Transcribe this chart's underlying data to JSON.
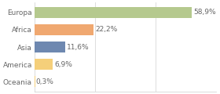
{
  "categories": [
    "Europa",
    "Africa",
    "Asia",
    "America",
    "Oceania"
  ],
  "values": [
    58.9,
    22.2,
    11.6,
    6.9,
    0.3
  ],
  "labels": [
    "58,9%",
    "22,2%",
    "11,6%",
    "6,9%",
    "0,3%"
  ],
  "colors": [
    "#b5c98e",
    "#f0a870",
    "#6e88b0",
    "#f5cf7a",
    "#f5cf7a"
  ],
  "background_color": "#ffffff",
  "xlim_max": 68,
  "bar_height": 0.62,
  "label_fontsize": 6.5,
  "tick_fontsize": 6.5,
  "grid_ticks": [
    22.67,
    45.33,
    68
  ],
  "figsize": [
    2.8,
    1.2
  ],
  "dpi": 100
}
